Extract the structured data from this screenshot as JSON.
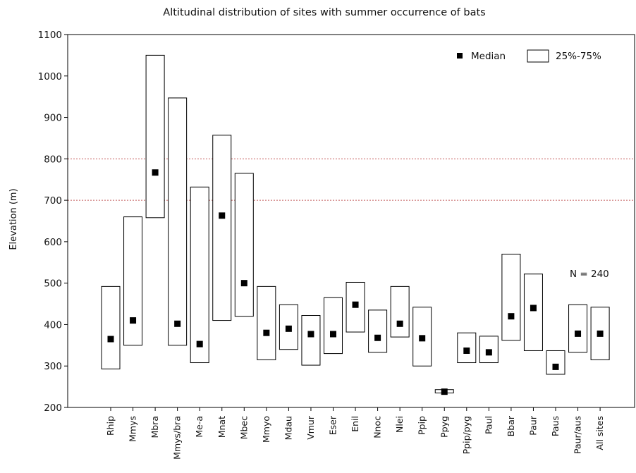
{
  "chart_data": {
    "type": "box",
    "title": "Altitudinal distribution of sites with summer occurrence of bats",
    "ylabel": "Elevation (m)",
    "xlabel": "",
    "ylim": [
      200,
      1100
    ],
    "yticks": [
      200,
      300,
      400,
      500,
      600,
      700,
      800,
      900,
      1000,
      1100
    ],
    "reference_lines": [
      700,
      800
    ],
    "grid": false,
    "legend": {
      "placement": "top-right",
      "median_label": "Median",
      "box_label": "25%-75%"
    },
    "annotation": "N = 240",
    "categories": [
      "Rhip",
      "Mmys",
      "Mbra",
      "Mmys/bra",
      "Me-a",
      "Mnat",
      "Mbec",
      "Mmyo",
      "Mdau",
      "Vmur",
      "Eser",
      "Enil",
      "Nnoc",
      "Nlei",
      "Ppip",
      "Ppyg",
      "Ppip/pyg",
      "Paul",
      "Bbar",
      "Paur",
      "Paus",
      "Paur/aus",
      "All sites"
    ],
    "q1": [
      293,
      350,
      658,
      350,
      308,
      410,
      420,
      315,
      340,
      302,
      330,
      382,
      333,
      370,
      300,
      235,
      308,
      308,
      362,
      337,
      280,
      333,
      315
    ],
    "median": [
      365,
      410,
      767,
      402,
      353,
      663,
      500,
      380,
      390,
      377,
      377,
      448,
      368,
      402,
      367,
      238,
      337,
      333,
      420,
      440,
      298,
      378,
      378
    ],
    "q3": [
      492,
      660,
      1050,
      947,
      732,
      857,
      765,
      492,
      448,
      422,
      465,
      502,
      435,
      492,
      442,
      243,
      380,
      372,
      570,
      522,
      337,
      448,
      442
    ]
  }
}
